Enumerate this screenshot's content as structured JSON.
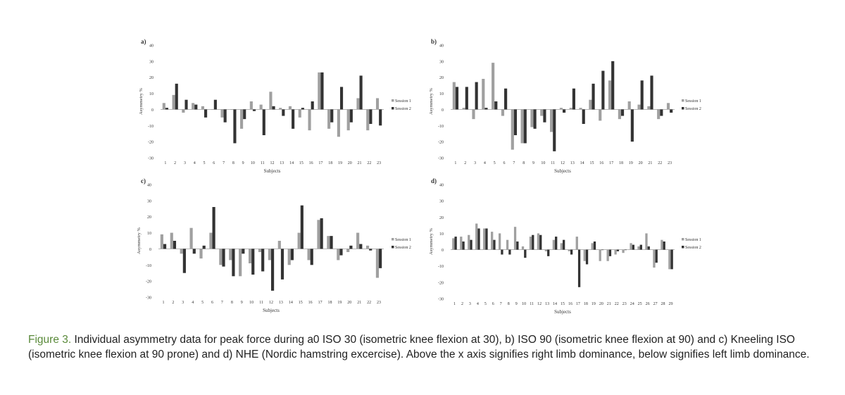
{
  "caption": {
    "label": "Figure 3.",
    "text": "Individual asymmetry data for peak force during a0 ISO 30 (isometric knee flexion at 30), b) ISO 90 (isometric knee flexion at 90) and c) Kneeling ISO (isometric knee flexion at 90 prone) and d) NHE (Nordic hamstring excercise). Above the x axis signifies right limb dominance, below signifies left limb dominance."
  },
  "colors": {
    "session1": "#a0a0a0",
    "session2": "#333333",
    "caption_label": "#5a8a3a"
  },
  "chart_data": [
    {
      "panel": "a)",
      "type": "bar",
      "ylabel": "Asymmetry %",
      "xlabel": "Subjects",
      "ylim": [
        -30,
        40
      ],
      "yticks": [
        40,
        30,
        20,
        10,
        0,
        -10,
        -20,
        -30
      ],
      "legend_position": "right",
      "categories": [
        "1",
        "2",
        "3",
        "4",
        "5",
        "6",
        "7",
        "8",
        "9",
        "10",
        "11",
        "12",
        "13",
        "14",
        "15",
        "16",
        "17",
        "18",
        "19",
        "20",
        "21",
        "22",
        "23"
      ],
      "series": [
        {
          "name": "Session 1",
          "values": [
            4,
            9,
            -2,
            4,
            2,
            0,
            -5,
            0,
            -12,
            5,
            3,
            11,
            1,
            2,
            -5,
            -13,
            23,
            -12,
            -17,
            -13,
            7,
            -13,
            7
          ]
        },
        {
          "name": "Session 2",
          "values": [
            1,
            16,
            6,
            3,
            -5,
            6,
            -8,
            -21,
            -6,
            -1,
            -16,
            2,
            -4,
            -12,
            1,
            5,
            23,
            -8,
            14,
            -8,
            21,
            -9,
            -10
          ]
        }
      ]
    },
    {
      "panel": "b)",
      "type": "bar",
      "ylabel": "Asymmetry %",
      "xlabel": "Subjects",
      "ylim": [
        -30,
        40
      ],
      "yticks": [
        40,
        30,
        20,
        10,
        0,
        -10,
        -20,
        -30
      ],
      "legend_position": "right",
      "categories": [
        "1",
        "2",
        "3",
        "4",
        "5",
        "6",
        "7",
        "8",
        "9",
        "10",
        "11",
        "12",
        "13",
        "14",
        "15",
        "16",
        "17",
        "18",
        "19",
        "20",
        "21",
        "22",
        "23"
      ],
      "series": [
        {
          "name": "Session 1",
          "values": [
            17,
            1,
            -6,
            19,
            29,
            -4,
            -25,
            -21,
            -11,
            -4,
            -14,
            1,
            1,
            1,
            6,
            -7,
            18,
            -6,
            5,
            3,
            2,
            -6,
            4
          ]
        },
        {
          "name": "Session 2",
          "values": [
            14,
            14,
            17,
            1,
            5,
            13,
            -16,
            -21,
            -12,
            -8,
            -26,
            -2,
            13,
            -9,
            16,
            24,
            30,
            -4,
            -20,
            18,
            21,
            -4,
            -2
          ]
        }
      ]
    },
    {
      "panel": "c)",
      "type": "bar",
      "ylabel": "Asymmetry %",
      "xlabel": "Subjects",
      "ylim": [
        -30,
        40
      ],
      "yticks": [
        40,
        30,
        20,
        10,
        0,
        -10,
        -20,
        -30
      ],
      "legend_position": "right",
      "categories": [
        "1",
        "2",
        "3",
        "4",
        "5",
        "6",
        "7",
        "8",
        "9",
        "10",
        "11",
        "12",
        "13",
        "14",
        "15",
        "16",
        "17",
        "18",
        "19",
        "20",
        "21",
        "22",
        "23"
      ],
      "series": [
        {
          "name": "Session 1",
          "values": [
            9,
            10,
            -3,
            13,
            -6,
            10,
            -10,
            -7,
            -17,
            -9,
            -2,
            -7,
            5,
            -10,
            10,
            -7,
            18,
            8,
            -7,
            -2,
            10,
            2,
            -18
          ]
        },
        {
          "name": "Session 2",
          "values": [
            3,
            5,
            -15,
            -3,
            2,
            26,
            -11,
            -17,
            -3,
            -16,
            -14,
            -26,
            -19,
            -7,
            27,
            -10,
            19,
            8,
            -4,
            2,
            3,
            -1,
            -12
          ]
        }
      ]
    },
    {
      "panel": "d)",
      "type": "bar",
      "ylabel": "Asymmetry %",
      "xlabel": "Subjects",
      "ylim": [
        -30,
        40
      ],
      "yticks": [
        40,
        30,
        20,
        10,
        0,
        -10,
        -20,
        -30
      ],
      "legend_position": "right",
      "categories": [
        "1",
        "2",
        "3",
        "4",
        "5",
        "6",
        "7",
        "8",
        "9",
        "10",
        "11",
        "12",
        "13",
        "14",
        "15",
        "16",
        "17",
        "18",
        "19",
        "20",
        "21",
        "22",
        "23",
        "24",
        "25",
        "26",
        "27",
        "28",
        "29"
      ],
      "series": [
        {
          "name": "Session 1",
          "values": [
            7,
            8,
            9,
            16,
            13,
            11,
            10,
            6,
            14,
            2,
            8,
            10,
            -1,
            6,
            4,
            -1,
            8,
            -7,
            4,
            -7,
            -7,
            -3,
            -2,
            4,
            2,
            10,
            -11,
            6,
            -12
          ]
        },
        {
          "name": "Session 2",
          "values": [
            8,
            5,
            6,
            13,
            13,
            6,
            -3,
            -3,
            5,
            -5,
            9,
            9,
            -4,
            8,
            6,
            -3,
            -23,
            -9,
            5,
            0,
            -4,
            -1,
            0,
            3,
            3,
            2,
            -8,
            5,
            -12
          ]
        }
      ]
    }
  ]
}
